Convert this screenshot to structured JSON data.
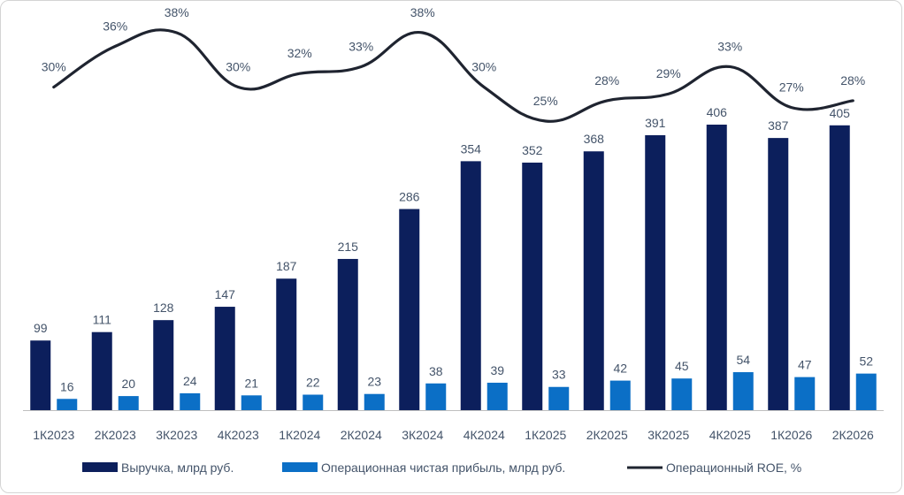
{
  "chart_data": {
    "type": "bar",
    "categories": [
      "1К2023",
      "2К2023",
      "3К2023",
      "4К2023",
      "1К2024",
      "2К2024",
      "3К2024",
      "4К2024",
      "1К2025",
      "2К2025",
      "3К2025",
      "4К2025",
      "1К2026",
      "2К2026"
    ],
    "series": [
      {
        "name": "Выручка, млрд руб.",
        "type": "bar",
        "color": "#0c1f5c",
        "values": [
          99,
          111,
          128,
          147,
          187,
          215,
          286,
          354,
          352,
          368,
          391,
          406,
          387,
          405
        ],
        "labels": [
          "99",
          "111",
          "128",
          "147",
          "187",
          "215",
          "286",
          "354",
          "352",
          "368",
          "391",
          "406",
          "387",
          "405"
        ]
      },
      {
        "name": "Операционная чистая прибыль, млрд руб.",
        "type": "bar",
        "color": "#0b6fc6",
        "values": [
          16,
          20,
          24,
          21,
          22,
          23,
          38,
          39,
          33,
          42,
          45,
          54,
          47,
          52
        ],
        "labels": [
          "16",
          "20",
          "24",
          "21",
          "22",
          "23",
          "38",
          "39",
          "33",
          "42",
          "45",
          "54",
          "47",
          "52"
        ]
      },
      {
        "name": "Операционный ROE, %",
        "type": "line",
        "color": "#1f2430",
        "values": [
          30,
          36,
          38,
          30,
          32,
          33,
          38,
          30,
          25,
          28,
          29,
          33,
          27,
          28
        ],
        "labels": [
          "30%",
          "36%",
          "38%",
          "30%",
          "32%",
          "33%",
          "38%",
          "30%",
          "25%",
          "28%",
          "29%",
          "33%",
          "27%",
          "28%"
        ]
      }
    ],
    "legend_position": "bottom",
    "grid": false
  }
}
